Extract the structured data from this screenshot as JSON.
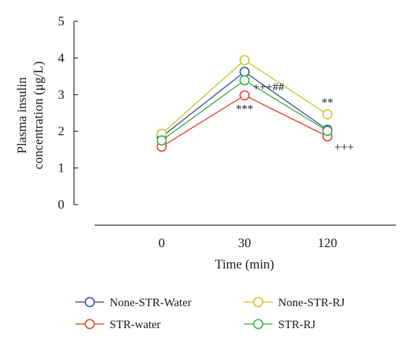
{
  "chart_data": {
    "type": "line",
    "categories": [
      "0",
      "30",
      "120"
    ],
    "ylabel_line1": "Plasma insulin",
    "ylabel_line2": "concentration (μg/L)",
    "xlabel": "Time (min)",
    "ylim": [
      0,
      5
    ],
    "yticks": [
      "0",
      "1",
      "2",
      "3",
      "4",
      "5"
    ],
    "grid": false,
    "legend_position": "bottom",
    "series": [
      {
        "name": "None-STR-Water",
        "color": "#3a4fa3",
        "values": [
          1.85,
          3.62,
          2.04
        ]
      },
      {
        "name": "STR-water",
        "color": "#e8412c",
        "values": [
          1.58,
          2.98,
          1.86
        ]
      },
      {
        "name": "None-STR-RJ",
        "color": "#c6c92e",
        "values": [
          1.93,
          3.94,
          2.46
        ]
      },
      {
        "name": "STR-RJ",
        "color": "#3cb043",
        "values": [
          1.75,
          3.39,
          2.01
        ]
      }
    ],
    "annotations": [
      {
        "text": "+++##",
        "category": 1,
        "y": 3.22
      },
      {
        "text": "***",
        "category": 1,
        "y": 2.62
      },
      {
        "text": "**",
        "category": 2,
        "y": 2.8
      },
      {
        "text": "+++",
        "category": 2,
        "y": 1.58
      }
    ]
  }
}
